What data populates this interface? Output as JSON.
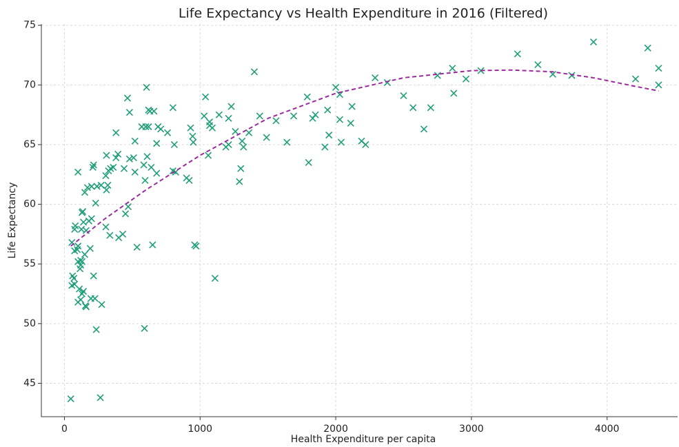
{
  "chart_data": {
    "type": "scatter",
    "title": "Life Expectancy vs Health Expenditure in 2016 (Filtered)",
    "x_label": "Health Expenditure per capita",
    "y_label": "Life Expectancy",
    "xlim": [
      -170,
      4520
    ],
    "ylim": [
      42.2,
      75.1
    ],
    "xticks": [
      0,
      1000,
      2000,
      3000,
      4000
    ],
    "yticks": [
      45,
      50,
      55,
      60,
      65,
      70,
      75
    ],
    "grid": true,
    "series": [
      {
        "type": "scatter",
        "marker": "x",
        "color": "#1f9e78",
        "x": [
          47,
          265,
          235,
          590,
          275,
          160,
          155,
          100,
          120,
          195,
          225,
          130,
          140,
          110,
          55,
          75,
          70,
          215,
          60,
          115,
          120,
          130,
          100,
          120,
          150,
          95,
          75,
          190,
          55,
          100,
          125,
          160,
          75,
          80,
          140,
          180,
          200,
          130,
          135,
          230,
          150,
          170,
          240,
          200,
          270,
          210,
          215,
          100,
          305,
          310,
          320,
          310,
          325,
          340,
          360,
          380,
          395,
          380,
          305,
          335,
          400,
          430,
          450,
          470,
          440,
          465,
          480,
          480,
          510,
          520,
          520,
          535,
          570,
          585,
          595,
          605,
          600,
          610,
          620,
          630,
          620,
          640,
          650,
          660,
          680,
          680,
          690,
          710,
          760,
          800,
          810,
          800,
          820,
          900,
          920,
          930,
          950,
          945,
          960,
          970,
          1030,
          1040,
          1060,
          1070,
          1070,
          1090,
          1110,
          1140,
          1190,
          1210,
          1210,
          1230,
          1260,
          1290,
          1300,
          1310,
          1320,
          1360,
          1400,
          1440,
          1490,
          1560,
          1640,
          1690,
          1790,
          1800,
          1830,
          1850,
          1920,
          1940,
          1950,
          2000,
          2030,
          2030,
          2040,
          2110,
          2120,
          2190,
          2220,
          2290,
          2380,
          2500,
          2570,
          2650,
          2700,
          2750,
          2860,
          2870,
          2960,
          3070,
          3340,
          3490,
          3600,
          3740,
          3900,
          4210,
          4300,
          4380,
          4380
        ],
        "values": [
          43.7,
          43.8,
          49.5,
          49.6,
          51.6,
          51.4,
          51.5,
          51.8,
          52,
          52.1,
          52.1,
          52.5,
          52.7,
          52.9,
          53.2,
          53.3,
          53.8,
          54,
          54,
          54.6,
          54.9,
          55.2,
          55.2,
          55.3,
          55.8,
          56.2,
          56.1,
          56.3,
          56.8,
          56.5,
          57.9,
          57.8,
          57.9,
          58.2,
          58.5,
          58.6,
          58.8,
          59.3,
          59.4,
          60.1,
          61,
          61.4,
          61.5,
          61.5,
          61.6,
          63.1,
          63.3,
          62.7,
          62.4,
          61.2,
          61.6,
          64.1,
          62.8,
          63,
          63.1,
          66,
          64.2,
          63.9,
          58.1,
          57.4,
          57.2,
          57.5,
          59.2,
          59.8,
          63,
          68.9,
          67.7,
          63.8,
          63.9,
          65.3,
          62.7,
          56.4,
          66.5,
          63.3,
          62,
          69.8,
          66.5,
          64,
          67.9,
          67.8,
          66.5,
          63.1,
          56.6,
          67.8,
          62.6,
          65.1,
          66.5,
          66.3,
          66,
          68.1,
          65,
          62.8,
          62.7,
          62.2,
          62,
          66.4,
          65.2,
          65.7,
          56.6,
          56.5,
          67.4,
          69,
          64.1,
          66.6,
          66.9,
          66.4,
          53.8,
          67.5,
          64.8,
          65,
          67.2,
          68.2,
          66.1,
          61.9,
          63,
          65.3,
          64.8,
          66,
          71.1,
          67.4,
          65.6,
          67,
          65.2,
          67.4,
          69,
          63.5,
          67.2,
          67.5,
          64.8,
          67.9,
          65.8,
          69.8,
          69.2,
          67.1,
          65.2,
          66.8,
          68.2,
          65.3,
          65,
          70.6,
          70.2,
          69.1,
          68.1,
          66.3,
          68.1,
          70.8,
          71.4,
          69.3,
          70.5,
          71.2,
          72.6,
          71.7,
          70.9,
          70.8,
          73.6,
          70.5,
          73.1,
          71.4,
          70
        ]
      },
      {
        "type": "line",
        "style": "dashed",
        "color": "#9b2a9c",
        "x": [
          47,
          300,
          600,
          1000,
          1500,
          2000,
          2500,
          3000,
          3300,
          3600,
          3900,
          4200,
          4380
        ],
        "values": [
          56.5,
          58.8,
          61.2,
          64.1,
          67.2,
          69.3,
          70.6,
          71.2,
          71.25,
          71.1,
          70.6,
          69.9,
          69.5
        ]
      }
    ]
  }
}
